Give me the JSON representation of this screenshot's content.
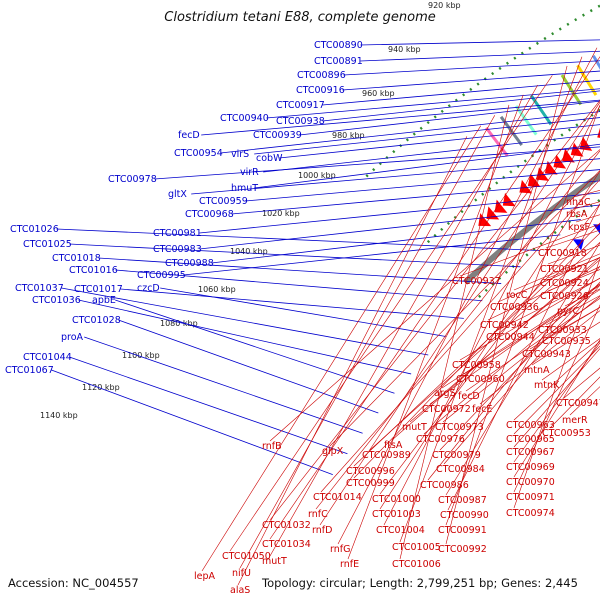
{
  "title": "Clostridium tetani E88, complete genome",
  "accession_text": "Accession: NC_004557",
  "topology_text": "Topology: circular; Length: 2,799,251 bp; Genes: 2,445",
  "colors": {
    "backbone": "#808080",
    "reverse_strand": "#ff0000",
    "forward_strand": "#0000ff",
    "green_dots": "#2e8b2e",
    "left_labels": "#0000cc",
    "right_labels": "#cc0000"
  },
  "kbp_ticks": [
    "920 kbp",
    "940 kbp",
    "960 kbp",
    "980 kbp",
    "1000 kbp",
    "1020 kbp",
    "1040 kbp",
    "1060 kbp",
    "1080 kbp",
    "1100 kbp",
    "1120 kbp",
    "1140 kbp"
  ],
  "left_labels": [
    "CTC00890",
    "CTC00891",
    "CTC00896",
    "CTC00916",
    "CTC00917",
    "CTC00938",
    "CTC00940",
    "CTC00939",
    "fecD",
    "CTC00954",
    "virS",
    "cobW",
    "virR",
    "hmuT",
    "CTC00978",
    "gltX",
    "CTC00959",
    "CTC00968",
    "CTC00981",
    "CTC00983",
    "CTC00988",
    "CTC00995",
    "CTC01026",
    "CTC01025",
    "CTC01018",
    "CTC01016",
    "CTC01017",
    "czcD",
    "CTC01037",
    "CTC01036",
    "apbE",
    "CTC01028",
    "proA",
    "CTC01044",
    "CTC01067"
  ],
  "right_labels": [
    "nhaC",
    "rbsA",
    "kpsF",
    "CTC00918",
    "CTC00921",
    "CTC00924",
    "CTC00926",
    "CTC00937",
    "rocC",
    "CTC00936",
    "pyrC",
    "CTC00942",
    "CTC00944",
    "CTC00933",
    "CTC00935",
    "CTC00943",
    "mtnA",
    "CTC00958",
    "CTC00960",
    "mtnK",
    "argS",
    "fecD",
    "CTC00947",
    "CTC00972",
    "fecE",
    "merR",
    "CTC00973",
    "CTC00963",
    "CTC00953",
    "CTC00976",
    "CTC00965",
    "mutT",
    "ftsA",
    "CTC00967",
    "CTC00989",
    "CTC00979",
    "CTC00996",
    "CTC00984",
    "CTC00969",
    "CTC00999",
    "CTC00986",
    "CTC00970",
    "rnfB",
    "glpX",
    "CTC01014",
    "CTC01000",
    "CTC00987",
    "CTC00971",
    "rnfC",
    "CTC01003",
    "CTC00990",
    "CTC00974",
    "CTC01032",
    "rnfD",
    "CTC01004",
    "CTC00991",
    "CTC01034",
    "rnfG",
    "CTC01005",
    "CTC00992",
    "CTC01050",
    "mutT",
    "rnfE",
    "CTC01006",
    "nifU",
    "lepA",
    "alaS"
  ]
}
